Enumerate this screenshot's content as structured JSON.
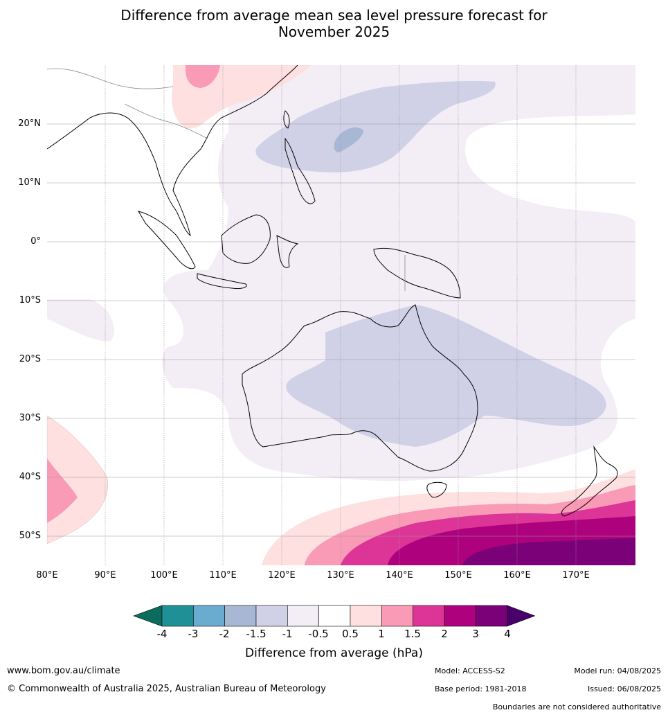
{
  "title_line1": "Difference from average mean sea level pressure forecast for",
  "title_line2": "November 2025",
  "lat_labels": [
    "20°N",
    "10°N",
    "0°",
    "10°S",
    "20°S",
    "30°S",
    "40°S",
    "50°S"
  ],
  "lon_labels": [
    "80°E",
    "90°E",
    "100°E",
    "110°E",
    "120°E",
    "130°E",
    "140°E",
    "150°E",
    "160°E",
    "170°E"
  ],
  "colorbar": {
    "ticks": [
      "-4",
      "-3",
      "-2",
      "-1.5",
      "-1",
      "-0.5",
      "0.5",
      "1",
      "1.5",
      "2",
      "3",
      "4"
    ],
    "colors": [
      "#0b6b5c",
      "#1f9196",
      "#6aaccf",
      "#a7b7d4",
      "#d0d1e6",
      "#f3edf6",
      "#ffffff",
      "#fee0e0",
      "#f99ab6",
      "#dd3497",
      "#ae017e",
      "#7a0177",
      "#49006a"
    ],
    "label": "Difference from average (hPa)"
  },
  "footer": {
    "website": "www.bom.gov.au/climate",
    "copyright": "© Commonwealth of Australia 2025, Australian Bureau of Meteorology",
    "model": "Model: ACCESS-S2",
    "base_period": "Base period: 1981-2018",
    "model_run": "Model run: 04/08/2025",
    "issued": "Issued: 06/08/2025",
    "disclaimer": "Boundaries are not considered authoritative"
  }
}
